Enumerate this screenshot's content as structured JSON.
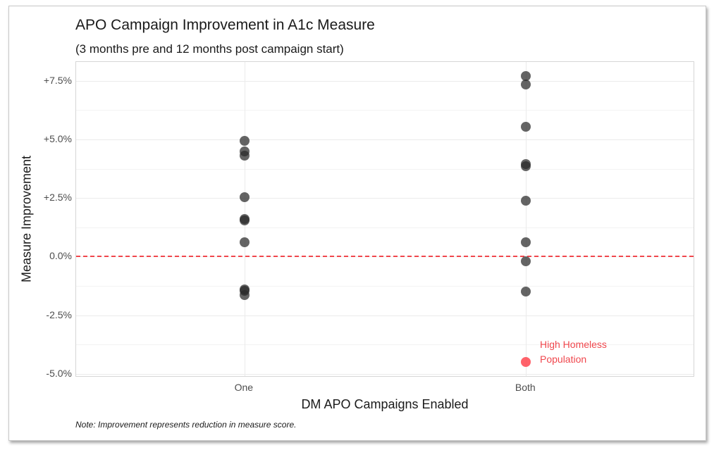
{
  "chart_data": {
    "type": "scatter",
    "title": "APO Campaign Improvement in A1c Measure",
    "subtitle": "(3 months pre and 12 months post campaign start)",
    "xlabel": "DM APO Campaigns Enabled",
    "ylabel": "Measure Improvement",
    "note": "Note: Improvement represents reduction in measure score.",
    "categories": [
      "One",
      "Both"
    ],
    "yticks": [
      "+7.5%",
      "+5.0%",
      "+2.5%",
      "0.0%",
      "-2.5%",
      "-5.0%"
    ],
    "ytick_values": [
      7.5,
      5.0,
      2.5,
      0.0,
      -2.5,
      -5.0
    ],
    "ylim": [
      -5.15,
      8.3
    ],
    "grid": true,
    "reference_line": {
      "y": 0.0,
      "style": "dashed",
      "color": "#f0474d"
    },
    "series": [
      {
        "name": "One",
        "x": "One",
        "values": [
          4.95,
          4.5,
          4.3,
          2.55,
          1.6,
          1.55,
          0.6,
          -1.4,
          -1.45,
          -1.65
        ],
        "color": "#3c3c3c"
      },
      {
        "name": "Both",
        "x": "Both",
        "values": [
          7.7,
          7.35,
          5.55,
          3.95,
          3.85,
          2.4,
          0.6,
          -0.2,
          -1.5
        ],
        "color": "#3c3c3c"
      },
      {
        "name": "High Homeless Population",
        "x": "Both",
        "values": [
          -4.5
        ],
        "color": "#f0474d",
        "highlight": true
      }
    ],
    "annotations": [
      {
        "x": "Both",
        "y": -4.5,
        "text": "High Homeless Population",
        "color": "#f0474d"
      }
    ]
  },
  "labels": {
    "title": "APO Campaign Improvement in A1c Measure",
    "subtitle": "(3 months pre and 12 months post campaign start)",
    "xlabel": "DM APO Campaigns Enabled",
    "ylabel": "Measure Improvement",
    "note": "Note: Improvement represents reduction in measure score.",
    "annot_line1": "High Homeless",
    "annot_line2": "Population",
    "xticks": [
      "One",
      "Both"
    ],
    "yticks": [
      "+7.5%",
      "+5.0%",
      "+2.5%",
      "0.0%",
      "-2.5%",
      "-5.0%"
    ]
  }
}
